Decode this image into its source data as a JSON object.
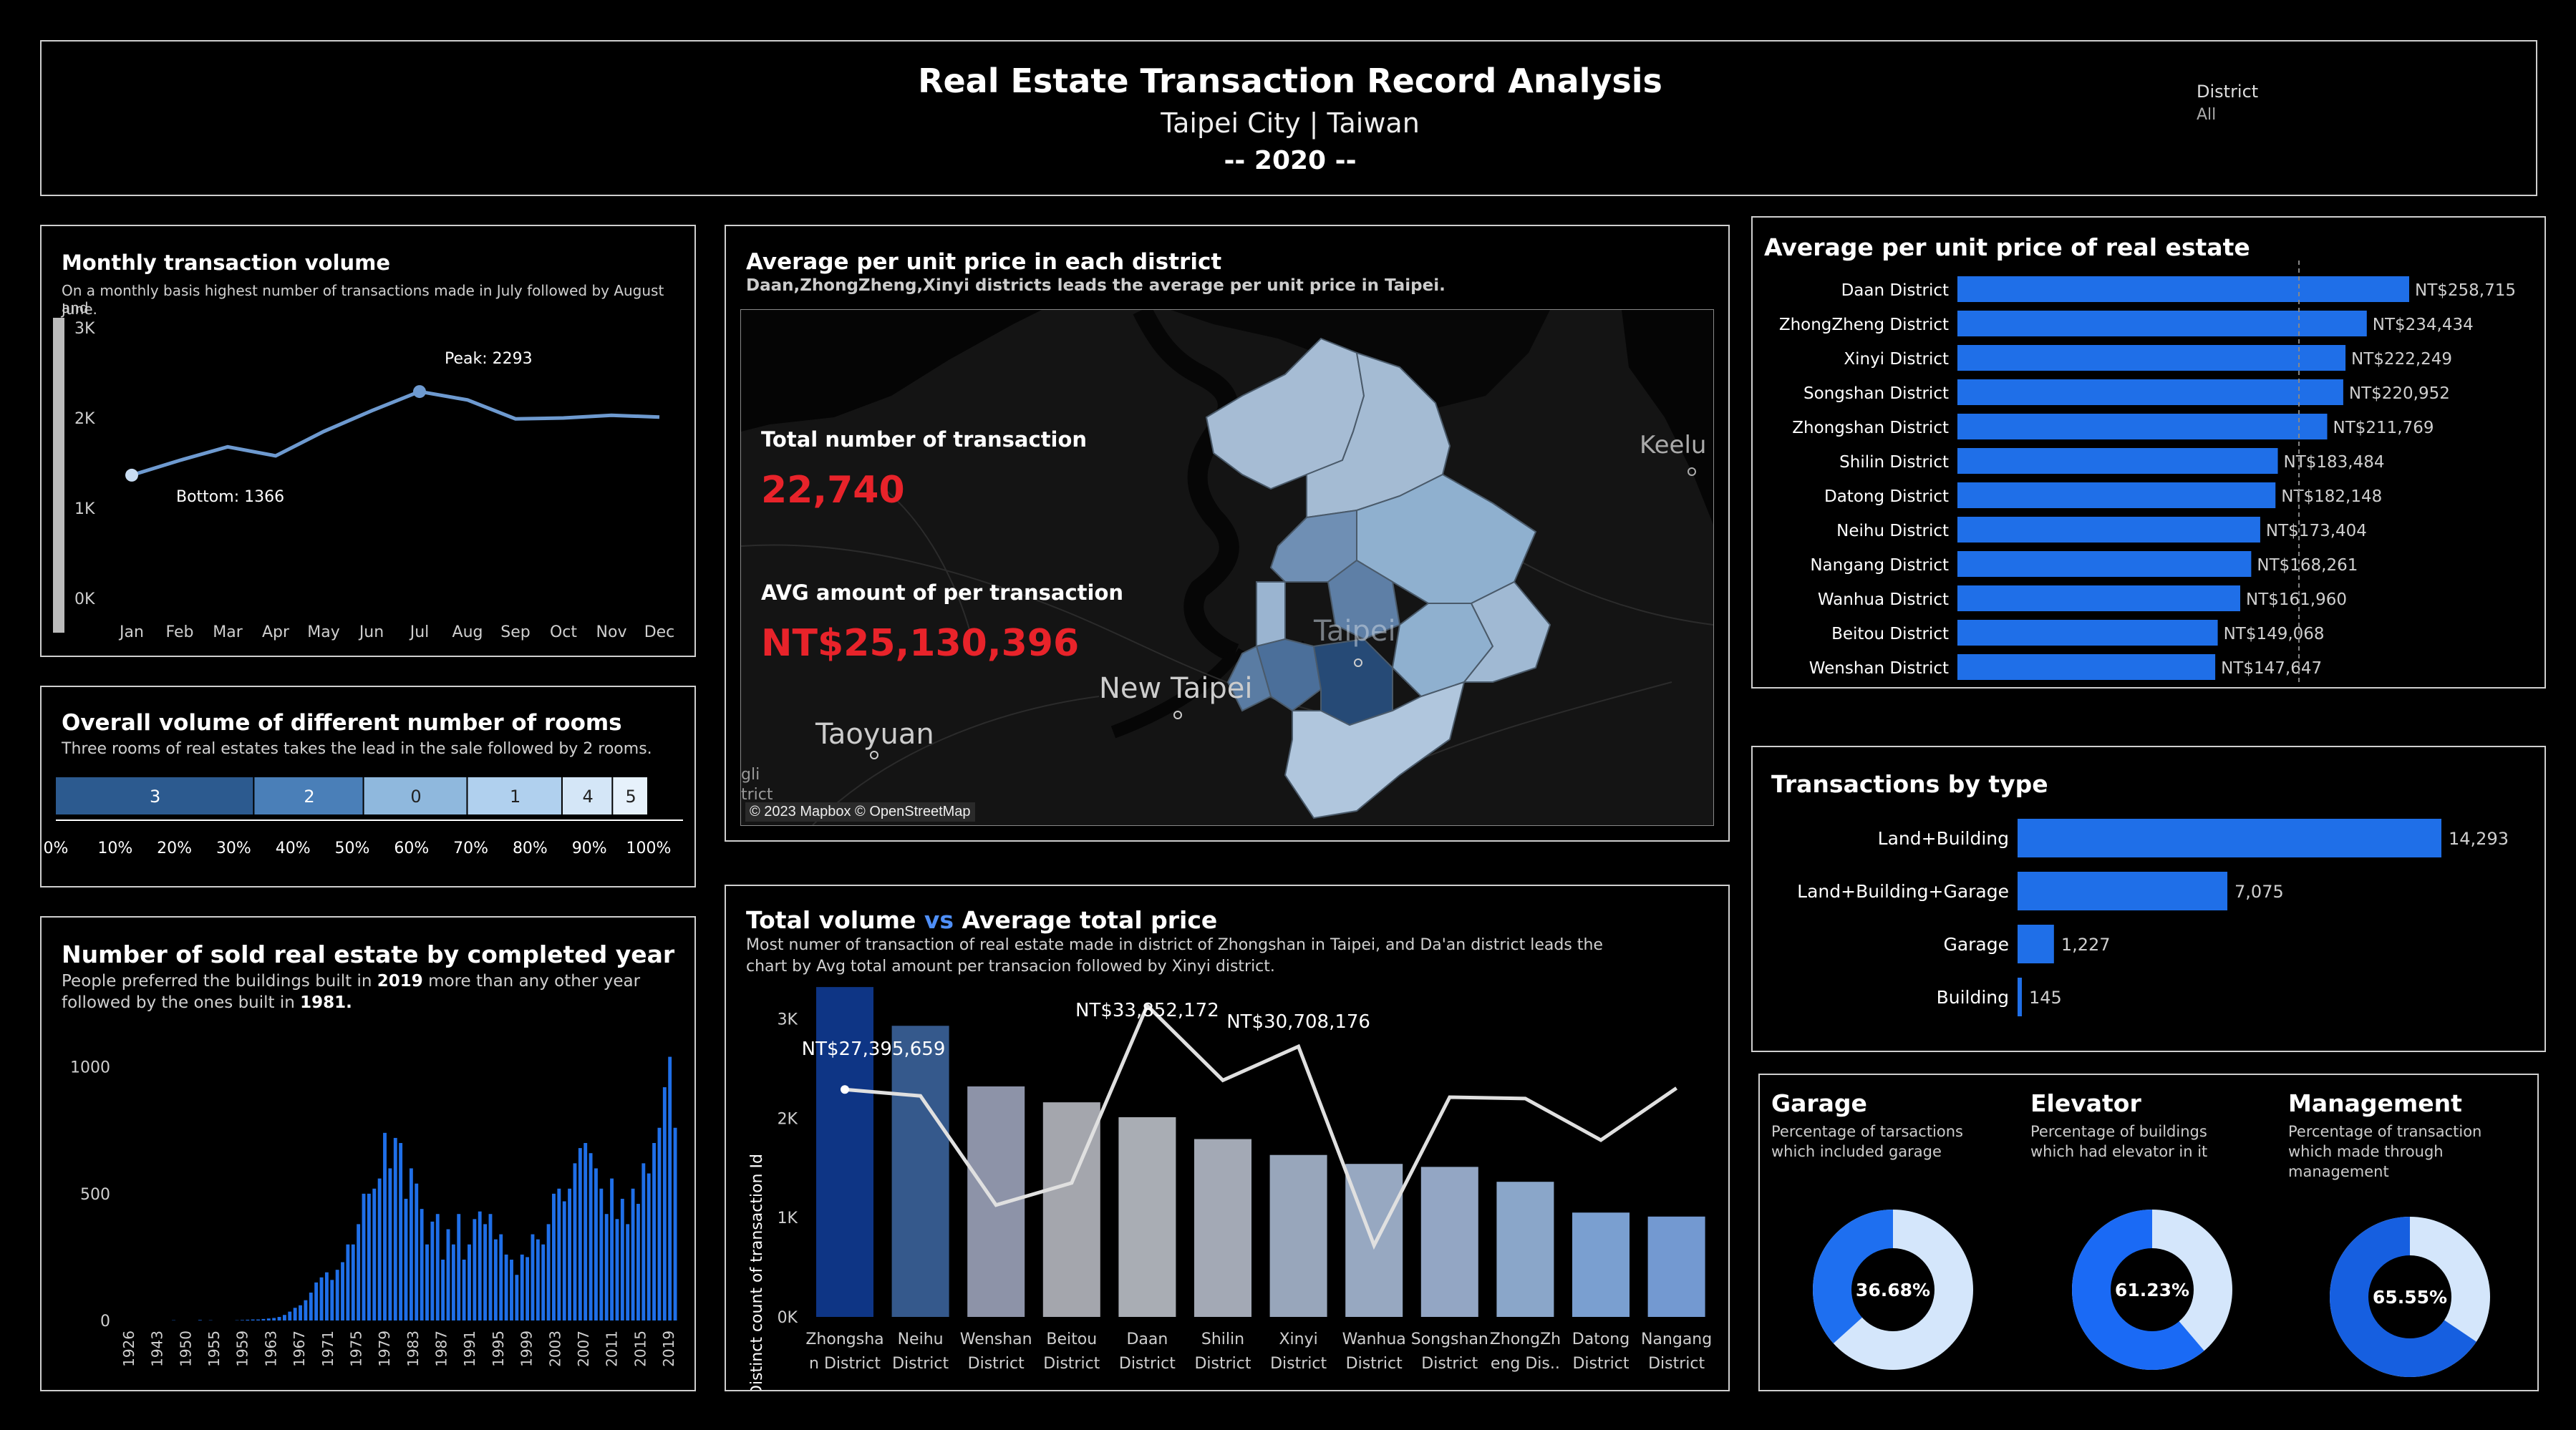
{
  "header": {
    "title": "Real Estate Transaction Record Analysis",
    "location": "Taipei City | Taiwan",
    "year": "-- 2020 --",
    "filter_label": "District",
    "filter_value": "All"
  },
  "monthly": {
    "title": "Monthly transaction volume",
    "subtitle_1": "On a monthly basis highest number of transactions made in July followed by August and",
    "subtitle_2": "June.",
    "peak_label": "Peak: 2293",
    "bottom_label": "Bottom: 1366",
    "y_ticks": [
      "3K",
      "2K",
      "1K",
      "0K"
    ],
    "line_color": "#6e9ad0"
  },
  "rooms": {
    "title": "Overall volume of different number of rooms",
    "subtitle": "Three rooms of real estates takes the lead in the sale followed by 2 rooms."
  },
  "completed": {
    "title": "Number of sold real estate by completed year",
    "subtitle_1_pre": "People preferred the buildings built in ",
    "subtitle_1_bold": "2019",
    "subtitle_1_post": " more than any other year",
    "subtitle_2_pre": "followed by the ones built in ",
    "subtitle_2_bold": "1981.",
    "y_ticks": [
      "1000",
      "500",
      "0"
    ],
    "x_labels": [
      "1926",
      "1943",
      "1950",
      "1955",
      "1959",
      "1963",
      "1967",
      "1971",
      "1975",
      "1979",
      "1983",
      "1987",
      "1991",
      "1995",
      "1999",
      "2003",
      "2007",
      "2011",
      "2015",
      "2019"
    ],
    "bar_color": "#1f6fe8"
  },
  "map": {
    "title": "Average per unit price in each district",
    "subtitle": "Daan,ZhongZheng,Xinyi districts leads the average per unit price in Taipei.",
    "total_label": "Total number of transaction",
    "total_value": "22,740",
    "avg_label": "AVG amount of per transaction",
    "avg_value": "NT$25,130,396",
    "attribution": "© 2023 Mapbox © OpenStreetMap",
    "place_keelung": "Keelu",
    "place_taipei": "Taipei",
    "place_new_taipei": "New Taipei",
    "place_taoyuan": "Taoyuan",
    "place_edge_1": "gli",
    "place_edge_2": "trict",
    "value_color": "#e8232a"
  },
  "volume": {
    "title_a": "Total volume",
    "title_vs": " vs ",
    "title_b": "Average total price",
    "subtitle_1": "Most numer of transaction of real estate made in district of Zhongshan in Taipei, and Da'an district leads the",
    "subtitle_2": "chart by Avg total amount per transacion followed by Xinyi district.",
    "y_axis_label": "Distinct count of transaction Id",
    "y_ticks": [
      "3K",
      "2K",
      "1K",
      "0K"
    ],
    "annot_1": "NT$27,395,659",
    "annot_2": "NT$33,852,172",
    "annot_3": "NT$30,708,176",
    "categories": [
      [
        "Zhongsha",
        "n District"
      ],
      [
        "Neihu",
        "District"
      ],
      [
        "Wenshan",
        "District"
      ],
      [
        "Beitou",
        "District"
      ],
      [
        "Daan",
        "District"
      ],
      [
        "Shilin",
        "District"
      ],
      [
        "Xinyi",
        "District"
      ],
      [
        "Wanhua",
        "District"
      ],
      [
        "Songshan",
        "District"
      ],
      [
        "ZhongZh",
        "eng Dis.."
      ],
      [
        "Datong",
        "District"
      ],
      [
        "Nangang",
        "District"
      ]
    ],
    "vs_color": "#4f8ff7"
  },
  "unit_price": {
    "title": "Average per unit price of real estate",
    "bar_color": "#1f6fe8"
  },
  "types": {
    "title": "Transactions by type",
    "bar_color": "#1f6fe8"
  },
  "donuts": [
    {
      "title": "Garage",
      "desc_1": "Percentage of tarsactions",
      "desc_2": "which included garage",
      "desc_3": "",
      "value": 0.3668,
      "label": "36.68%"
    },
    {
      "title": "Elevator",
      "desc_1": "Percentage of buildings",
      "desc_2": "which had elevator in it",
      "desc_3": "",
      "value": 0.6123,
      "label": "61.23%"
    },
    {
      "title": "Management",
      "desc_1": "Percentage of transaction",
      "desc_2": "which made through",
      "desc_3": "management",
      "value": 0.6555,
      "label": "65.55%"
    }
  ],
  "chart_data": [
    {
      "type": "line",
      "title": "Monthly transaction volume",
      "x": [
        "Jan",
        "Feb",
        "Mar",
        "Apr",
        "May",
        "Jun",
        "Jul",
        "Aug",
        "Sep",
        "Oct",
        "Nov",
        "Dec"
      ],
      "y": [
        1366,
        1530,
        1680,
        1580,
        1850,
        2080,
        2293,
        2200,
        1990,
        2000,
        2030,
        2010
      ],
      "ylim": [
        0,
        3000
      ],
      "xlabel": "",
      "ylabel": ""
    },
    {
      "type": "bar",
      "title": "Overall volume of different number of rooms",
      "orientation": "stacked-100",
      "categories": [
        "3",
        "2",
        "0",
        "1",
        "4",
        "5"
      ],
      "values": [
        33.5,
        18.5,
        17.5,
        16,
        8.5,
        6
      ],
      "colors": [
        "#2c5a8f",
        "#4a7fb8",
        "#8fb8dd",
        "#b0d0ee",
        "#d4e6f7",
        "#e6f1fb"
      ],
      "x_ticks": [
        "0%",
        "10%",
        "20%",
        "30%",
        "40%",
        "50%",
        "60%",
        "70%",
        "80%",
        "90%",
        "100%"
      ]
    },
    {
      "type": "bar",
      "title": "Number of sold real estate by completed year",
      "categories": [
        "1926",
        "1943",
        "1950",
        "1955",
        "1959",
        "1963",
        "1967",
        "1971",
        "1975",
        "1979",
        "1983",
        "1987",
        "1991",
        "1995",
        "1999",
        "2003",
        "2007",
        "2011",
        "2015",
        "2019"
      ],
      "values": [
        0,
        5,
        0,
        2,
        8,
        30,
        120,
        240,
        330,
        680,
        600,
        400,
        220,
        370,
        210,
        320,
        680,
        290,
        520,
        1045
      ],
      "ylim": [
        0,
        1050
      ]
    },
    {
      "type": "bar",
      "title": "Total volume vs Average total price",
      "categories": [
        "Zhongshan District",
        "Neihu District",
        "Wenshan District",
        "Beitou District",
        "Daan District",
        "Shilin District",
        "Xinyi District",
        "Wanhua District",
        "Songshan District",
        "ZhongZheng District",
        "Datong District",
        "Nangang District"
      ],
      "series": [
        {
          "name": "Distinct count of transaction Id",
          "values": [
            3320,
            2930,
            2320,
            2160,
            2010,
            1790,
            1630,
            1540,
            1510,
            1360,
            1050,
            1010
          ]
        },
        {
          "values": [
            27395659,
            26900000,
            18500000,
            20200000,
            33852172,
            28100000,
            30708176,
            15400000,
            26800000,
            26700000,
            23500000,
            27500000
          ]
        }
      ],
      "bar_colors": [
        "#0e3585",
        "#35598c",
        "#8d93a8",
        "#a4a6ad",
        "#a9adb4",
        "#a3a9b5",
        "#98a6bb",
        "#97a8c1",
        "#93a6c4",
        "#8aa6c9",
        "#7a9fd0",
        "#7399d1"
      ],
      "ylim": [
        0,
        3400
      ]
    },
    {
      "type": "bar",
      "title": "Average per unit price of real estate",
      "orientation": "horizontal",
      "categories": [
        "Daan District",
        "ZhongZheng District",
        "Xinyi District",
        "Songshan District",
        "Zhongshan District",
        "Shilin District",
        "Datong District",
        "Neihu District",
        "Nangang District",
        "Wanhua District",
        "Beitou District",
        "Wenshan District"
      ],
      "values": [
        258715,
        234434,
        222249,
        220952,
        211769,
        183484,
        182148,
        173404,
        168261,
        161960,
        149068,
        147647
      ],
      "labels": [
        "NT$258,715",
        "NT$234,434",
        "NT$222,249",
        "NT$220,952",
        "NT$211,769",
        "NT$183,484",
        "NT$182,148",
        "NT$173,404",
        "NT$168,261",
        "NT$161,960",
        "NT$149,068",
        "NT$147,647"
      ],
      "reference_line": 195600
    },
    {
      "type": "bar",
      "title": "Transactions by type",
      "orientation": "horizontal",
      "categories": [
        "Land+Building",
        "Land+Building+Garage",
        "Garage",
        "Building"
      ],
      "values": [
        14293,
        7075,
        1227,
        145
      ],
      "labels": [
        "14,293",
        "7,075",
        "1,227",
        "145"
      ]
    },
    {
      "type": "pie",
      "title": "Garage / Elevator / Management",
      "categories": [
        "Garage",
        "Elevator",
        "Management"
      ],
      "values": [
        36.68,
        61.23,
        65.55
      ]
    }
  ]
}
